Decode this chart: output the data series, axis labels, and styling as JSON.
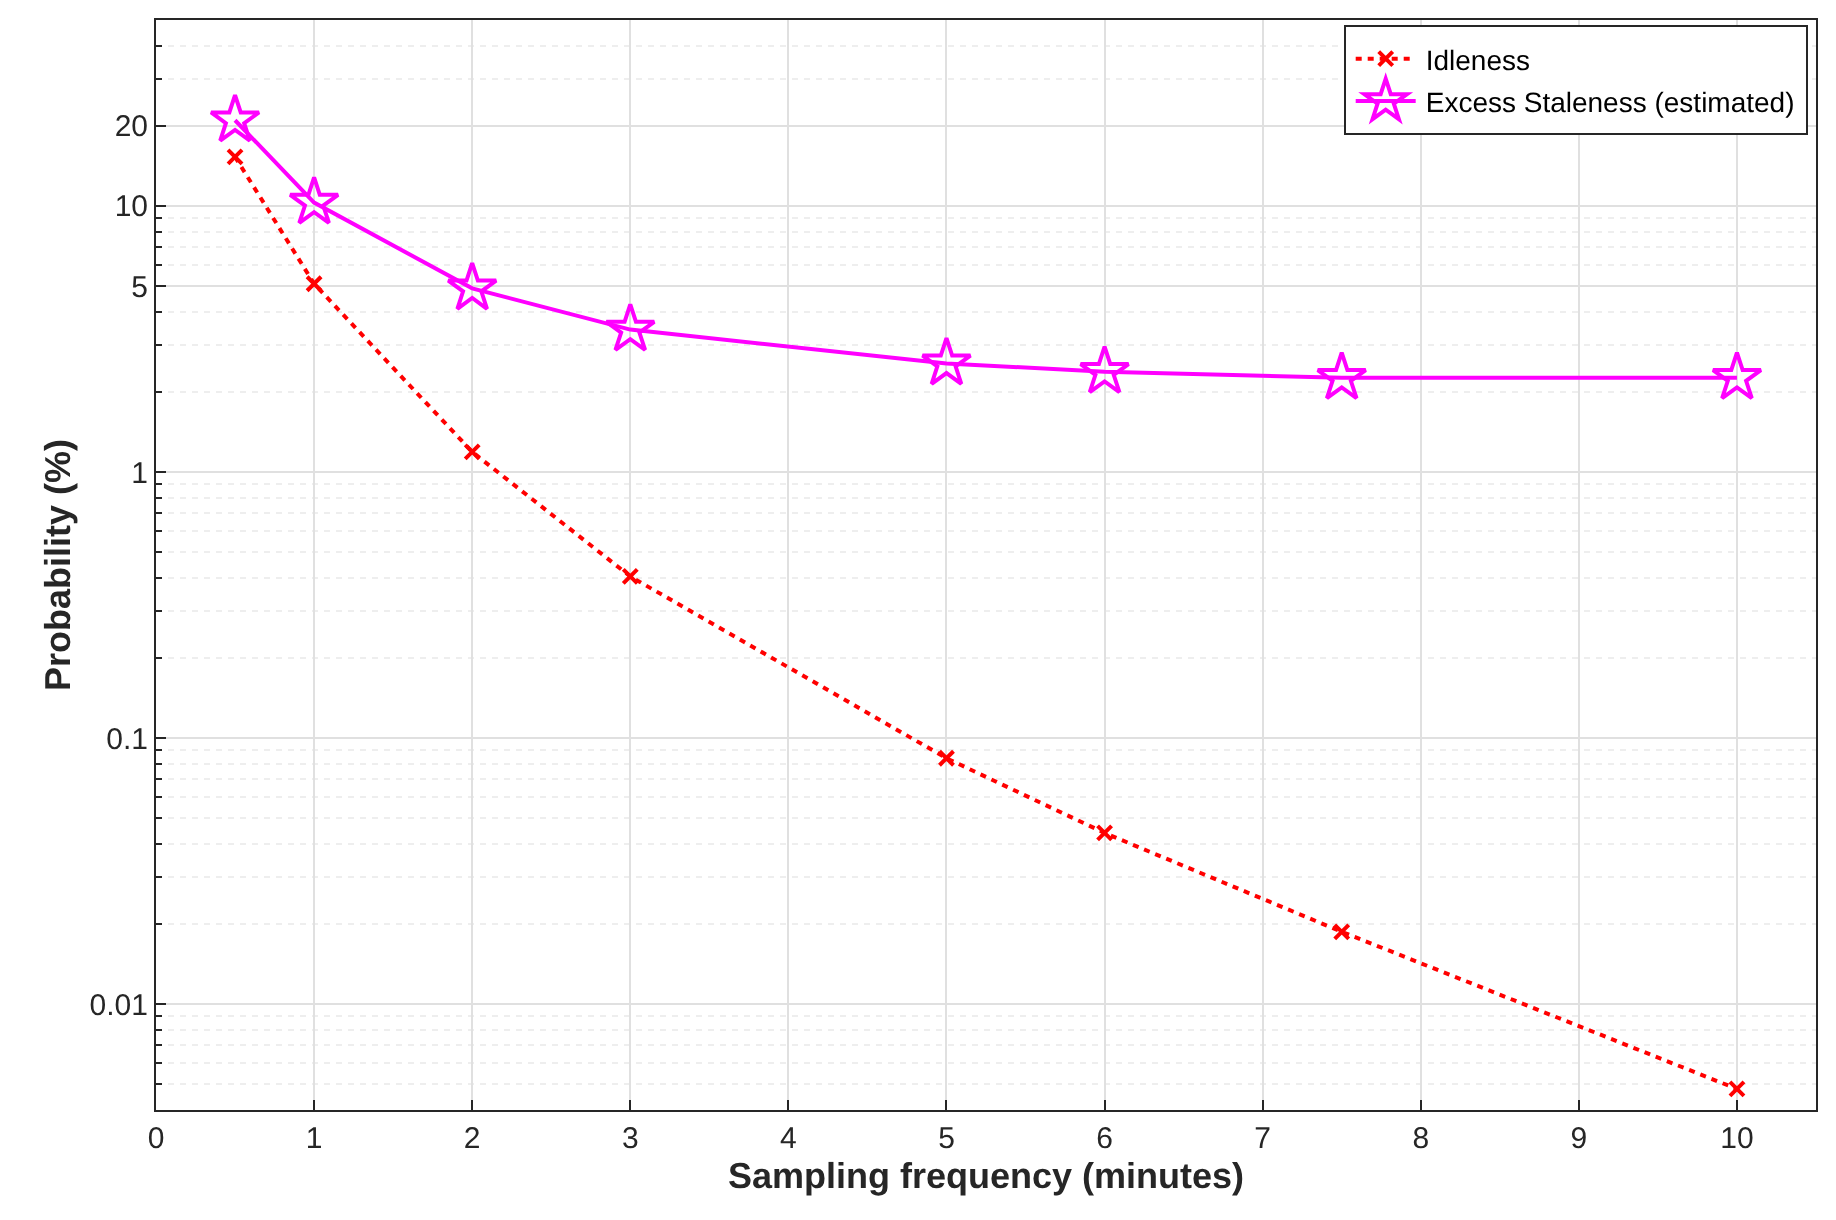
{
  "chart_data": {
    "type": "line",
    "xlabel": "Sampling frequency (minutes)",
    "ylabel": "Probability (%)",
    "x": [
      0.5,
      1,
      2,
      3,
      5,
      6,
      7.5,
      10
    ],
    "series": [
      {
        "name": "Idleness",
        "color": "#ff0000",
        "values": [
          15.3,
          5.1,
          1.19,
          0.405,
          0.084,
          0.044,
          0.0187,
          0.0048
        ],
        "marker": "cross",
        "line_style": "dotted"
      },
      {
        "name": "Excess Staleness (estimated)",
        "color": "#ff00ff",
        "values": [
          21,
          10.3,
          4.9,
          3.43,
          2.56,
          2.38,
          2.26,
          2.26
        ],
        "marker": "star",
        "line_style": "solid"
      }
    ],
    "log": "y",
    "xlim": [
      0,
      10.5
    ],
    "xticks": [
      0,
      1,
      2,
      3,
      4,
      5,
      6,
      7,
      8,
      9,
      10
    ],
    "ylim": [
      0.004,
      50
    ],
    "yticks": [
      0.01,
      0.1,
      1,
      5,
      10,
      20
    ],
    "grid": true,
    "legend": "top right"
  }
}
